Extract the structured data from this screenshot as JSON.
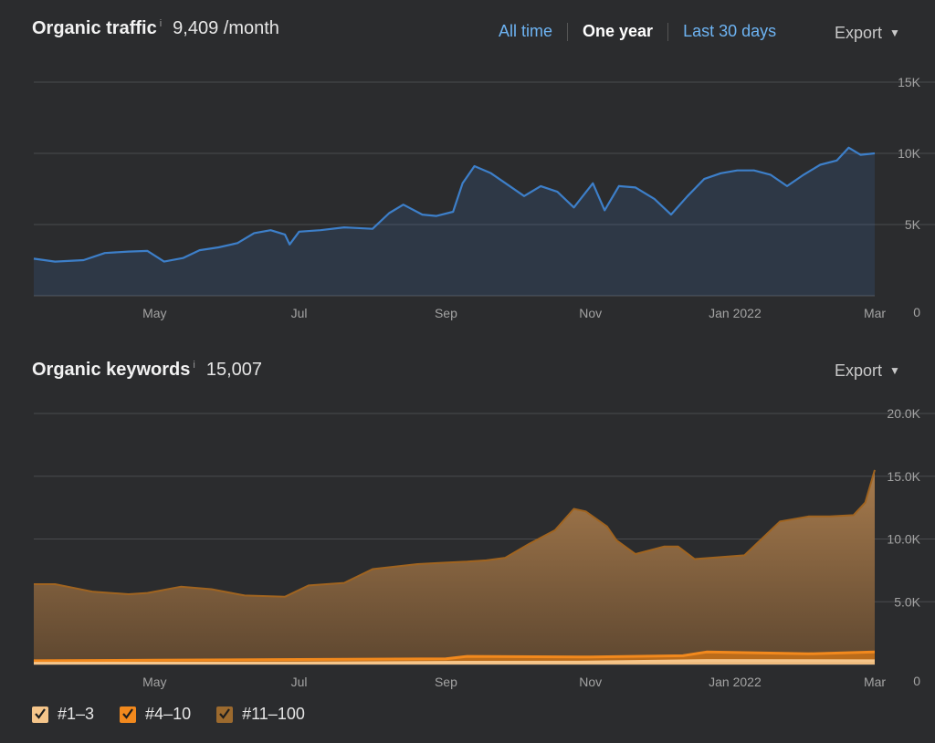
{
  "traffic": {
    "title": "Organic traffic",
    "info": "i",
    "value": "9,409 /month",
    "ranges": [
      "All time",
      "One year",
      "Last 30 days"
    ],
    "selected_range": "One year",
    "export_label": "Export",
    "line_color": "#3d7fc9"
  },
  "keywords": {
    "title": "Organic keywords",
    "info": "i",
    "value": "15,007",
    "export_label": "Export",
    "legend": [
      {
        "label": "#1–3",
        "color": "#f5c58a"
      },
      {
        "label": "#4–10",
        "color": "#f2891d"
      },
      {
        "label": "#11–100",
        "color": "#9c6a2e"
      }
    ]
  },
  "chart_data": [
    {
      "type": "area",
      "title": "Organic traffic",
      "x_ticks": [
        {
          "date": "2021-05-01",
          "label": "May"
        },
        {
          "date": "2021-07-01",
          "label": "Jul"
        },
        {
          "date": "2021-09-01",
          "label": "Sep"
        },
        {
          "date": "2021-11-01",
          "label": "Nov"
        },
        {
          "date": "2022-01-01",
          "label": "Jan 2022"
        },
        {
          "date": "2022-03-01",
          "label": "Mar"
        }
      ],
      "xlim": [
        "2021-03-11",
        "2022-03-01"
      ],
      "y_ticks": [
        {
          "v": 15000,
          "label": "15K"
        },
        {
          "v": 10000,
          "label": "10K"
        },
        {
          "v": 5000,
          "label": "5K"
        },
        {
          "v": 0,
          "label": "0"
        }
      ],
      "ylim": [
        0,
        15000
      ],
      "grid": true,
      "series": [
        {
          "x": [
            "2021-03-11",
            "2021-03-20",
            "2021-04-01",
            "2021-04-10",
            "2021-04-20",
            "2021-04-28",
            "2021-05-05",
            "2021-05-13",
            "2021-05-20",
            "2021-05-28",
            "2021-06-05",
            "2021-06-12",
            "2021-06-19",
            "2021-06-25",
            "2021-06-27",
            "2021-07-01",
            "2021-07-10",
            "2021-07-20",
            "2021-08-01",
            "2021-08-08",
            "2021-08-14",
            "2021-08-22",
            "2021-08-28",
            "2021-09-04",
            "2021-09-08",
            "2021-09-13",
            "2021-09-20",
            "2021-09-27",
            "2021-10-04",
            "2021-10-11",
            "2021-10-18",
            "2021-10-25",
            "2021-11-02",
            "2021-11-07",
            "2021-11-13",
            "2021-11-20",
            "2021-11-28",
            "2021-12-05",
            "2021-12-12",
            "2021-12-19",
            "2021-12-26",
            "2022-01-02",
            "2022-01-09",
            "2022-01-16",
            "2022-01-23",
            "2022-01-30",
            "2022-02-06",
            "2022-02-13",
            "2022-02-18",
            "2022-02-23",
            "2022-03-01"
          ],
          "values": [
            2600,
            2400,
            2500,
            3000,
            3100,
            3150,
            2400,
            2650,
            3200,
            3400,
            3700,
            4400,
            4600,
            4300,
            3600,
            4500,
            4600,
            4800,
            4700,
            5800,
            6400,
            5700,
            5600,
            5900,
            7900,
            9100,
            8600,
            7800,
            7000,
            7700,
            7300,
            6200,
            7900,
            6000,
            7700,
            7600,
            6800,
            5700,
            7000,
            8200,
            8600,
            8800,
            8800,
            8500,
            7700,
            8500,
            9200,
            9500,
            10400,
            9900,
            10000
          ]
        }
      ]
    },
    {
      "type": "area",
      "title": "Organic keywords",
      "x_ticks": [
        {
          "date": "2021-05-01",
          "label": "May"
        },
        {
          "date": "2021-07-01",
          "label": "Jul"
        },
        {
          "date": "2021-09-01",
          "label": "Sep"
        },
        {
          "date": "2021-11-01",
          "label": "Nov"
        },
        {
          "date": "2022-01-01",
          "label": "Jan 2022"
        },
        {
          "date": "2022-03-01",
          "label": "Mar"
        }
      ],
      "xlim": [
        "2021-03-11",
        "2022-03-01"
      ],
      "y_ticks": [
        {
          "v": 20000,
          "label": "20.0K"
        },
        {
          "v": 15000,
          "label": "15.0K"
        },
        {
          "v": 10000,
          "label": "10.0K"
        },
        {
          "v": 5000,
          "label": "5.0K"
        },
        {
          "v": 0,
          "label": "0"
        }
      ],
      "ylim": [
        0,
        20000
      ],
      "grid": true,
      "stacked": true,
      "series": [
        {
          "name": "#11–100",
          "x": [
            "2021-03-11",
            "2021-03-20",
            "2021-04-05",
            "2021-04-20",
            "2021-04-28",
            "2021-05-12",
            "2021-05-25",
            "2021-06-08",
            "2021-06-25",
            "2021-07-05",
            "2021-07-20",
            "2021-08-01",
            "2021-08-20",
            "2021-08-30",
            "2021-09-10",
            "2021-09-18",
            "2021-09-26",
            "2021-10-06",
            "2021-10-17",
            "2021-10-25",
            "2021-10-30",
            "2021-11-08",
            "2021-11-12",
            "2021-11-20",
            "2021-12-02",
            "2021-12-08",
            "2021-12-15",
            "2021-12-22",
            "2022-01-05",
            "2022-01-20",
            "2022-02-01",
            "2022-02-10",
            "2022-02-20",
            "2022-02-25",
            "2022-03-01"
          ],
          "values": [
            6400,
            6400,
            5800,
            5600,
            5700,
            6200,
            6000,
            5500,
            5400,
            6300,
            6500,
            7600,
            8000,
            8100,
            8200,
            8300,
            8500,
            9600,
            10700,
            12400,
            12200,
            11000,
            9900,
            8800,
            9400,
            9400,
            8400,
            8500,
            8700,
            11400,
            11800,
            11800,
            11900,
            12900,
            15500
          ]
        },
        {
          "name": "#4–10",
          "x": [
            "2021-03-11",
            "2021-05-01",
            "2021-07-01",
            "2021-09-01",
            "2021-09-10",
            "2021-11-01",
            "2021-12-10",
            "2021-12-20",
            "2022-02-01",
            "2022-03-01"
          ],
          "values": [
            300,
            340,
            400,
            450,
            650,
            600,
            700,
            1000,
            850,
            1000
          ]
        },
        {
          "name": "#1–3",
          "x": [
            "2021-03-11",
            "2021-07-01",
            "2021-09-10",
            "2021-11-01",
            "2021-12-20",
            "2022-03-01"
          ],
          "values": [
            100,
            120,
            180,
            200,
            320,
            300
          ]
        }
      ]
    }
  ]
}
